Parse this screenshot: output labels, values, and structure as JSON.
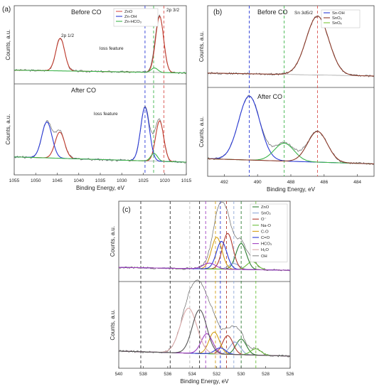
{
  "chart_data": [
    {
      "panel": "(a)",
      "type": "line",
      "xlabel": "Binding Energy, eV",
      "ylabel": "Counts, a.u.",
      "xlim": [
        1055,
        1015
      ],
      "x_ticks": [
        1055,
        1050,
        1045,
        1040,
        1035,
        1030,
        1025,
        1020,
        1015
      ],
      "legend": [
        "ZnO",
        "Zn-OH",
        "Zn-HCO3"
      ],
      "legend_display": [
        "ZnO",
        "Zn-OH",
        "Zn-HCO₃"
      ],
      "legend_colors": [
        "#d9534f",
        "#2b3bd6",
        "#3cb44b"
      ],
      "top": {
        "label": "Before CO",
        "annotations": [
          "2p 1/2",
          "2p 3/2",
          "loss feature"
        ],
        "series": [
          {
            "name": "ZnO",
            "color": "#c0392b",
            "peaks": [
              {
                "center": 1044.3,
                "height": 0.58,
                "fwhm": 2.4
              },
              {
                "center": 1021.2,
                "height": 1.0,
                "fwhm": 2.2
              }
            ]
          },
          {
            "name": "Zn-HCO3",
            "color": "#3cb44b",
            "peaks": [
              {
                "center": 1022.4,
                "height": 0.08,
                "fwhm": 1.8
              }
            ]
          }
        ]
      },
      "bottom": {
        "label": "After CO",
        "annotations": [
          "loss feature"
        ],
        "series": [
          {
            "name": "ZnO",
            "color": "#c0392b",
            "peaks": [
              {
                "center": 1044.4,
                "height": 0.4,
                "fwhm": 2.6
              },
              {
                "center": 1021.2,
                "height": 0.62,
                "fwhm": 2.2
              }
            ]
          },
          {
            "name": "Zn-OH",
            "color": "#2b3bd6",
            "peaks": [
              {
                "center": 1047.4,
                "height": 0.55,
                "fwhm": 2.8
              },
              {
                "center": 1024.6,
                "height": 0.82,
                "fwhm": 2.4
              }
            ]
          },
          {
            "name": "Zn-HCO3",
            "color": "#3cb44b",
            "peaks": [
              {
                "center": 1022.5,
                "height": 0.12,
                "fwhm": 1.8
              }
            ]
          }
        ]
      },
      "reference_lines": [
        {
          "x": 1024.6,
          "color": "#2b3bd6"
        },
        {
          "x": 1022.6,
          "color": "#3cb44b"
        },
        {
          "x": 1020.2,
          "color": "#d9534f"
        }
      ]
    },
    {
      "panel": "(b)",
      "type": "line",
      "xlabel": "Binding Energy, eV",
      "ylabel": "Counts, a.u.",
      "xlim": [
        493,
        483
      ],
      "x_ticks": [
        492,
        490,
        488,
        486,
        484
      ],
      "legend": [
        "Sn-OH",
        "SnO2",
        "SnOx"
      ],
      "legend_display": [
        "Sn-OH",
        "SnO₂",
        "SnOₓ"
      ],
      "legend_colors": [
        "#2b3bd6",
        "#8b3a2a",
        "#7cc63a"
      ],
      "top": {
        "label": "Before CO",
        "annotations": [
          "Sn 3d5/2"
        ],
        "series": [
          {
            "name": "SnO2",
            "color": "#8b3a2a",
            "peaks": [
              {
                "center": 486.4,
                "height": 1.0,
                "fwhm": 1.6
              }
            ]
          }
        ]
      },
      "bottom": {
        "label": "After CO",
        "series": [
          {
            "name": "Sn-OH",
            "color": "#2b3bd6",
            "peaks": [
              {
                "center": 490.5,
                "height": 1.0,
                "fwhm": 1.5
              }
            ]
          },
          {
            "name": "SnOx",
            "color": "#3cb44b",
            "peaks": [
              {
                "center": 488.4,
                "height": 0.28,
                "fwhm": 1.4
              }
            ]
          },
          {
            "name": "SnO2",
            "color": "#8b3a2a",
            "peaks": [
              {
                "center": 486.4,
                "height": 0.48,
                "fwhm": 1.4
              }
            ]
          }
        ]
      },
      "reference_lines": [
        {
          "x": 490.5,
          "color": "#2b3bd6"
        },
        {
          "x": 488.4,
          "color": "#3cb44b"
        },
        {
          "x": 486.4,
          "color": "#d9534f"
        }
      ]
    },
    {
      "panel": "(c)",
      "type": "line",
      "xlabel": "Binding Energy, eV",
      "ylabel": "Counts, a.u.",
      "xlim": [
        540,
        526
      ],
      "x_ticks": [
        540,
        538,
        536,
        534,
        532,
        530,
        528,
        526
      ],
      "legend": [
        "ZnO",
        "SnO2",
        "O-",
        "Na-O",
        "C-O",
        "C=O",
        "HCO3",
        "H2O",
        "OH"
      ],
      "legend_display": [
        "ZnO",
        "SnO₂",
        "O⁻",
        "Na-O",
        "C-O",
        "C=O",
        "HCO₃",
        "H₂O",
        "OH"
      ],
      "legend_colors": [
        "#2e7d32",
        "#8fa8d8",
        "#b03a2e",
        "#6bbf3a",
        "#d4a017",
        "#2b3bd6",
        "#a040c0",
        "#d9a8a8",
        "#8a8a8a"
      ],
      "top": {
        "series": [
          {
            "name": "ZnO",
            "color": "#2e7d32",
            "peaks": [
              {
                "center": 530.0,
                "height": 0.45,
                "fwhm": 1.0
              }
            ]
          },
          {
            "name": "SnO2",
            "color": "#8fa8d8",
            "peaks": [
              {
                "center": 530.6,
                "height": 0.1,
                "fwhm": 1.0
              }
            ]
          },
          {
            "name": "O-",
            "color": "#b03a2e",
            "peaks": [
              {
                "center": 531.1,
                "height": 0.62,
                "fwhm": 1.0
              }
            ]
          },
          {
            "name": "Na-O",
            "color": "#6bbf3a",
            "peaks": [
              {
                "center": 529.1,
                "height": 0.14,
                "fwhm": 1.0
              }
            ]
          },
          {
            "name": "C-O",
            "color": "#d4a017",
            "peaks": [
              {
                "center": 532.0,
                "height": 0.55,
                "fwhm": 1.0
              }
            ]
          },
          {
            "name": "C=O",
            "color": "#2b3bd6",
            "peaks": [
              {
                "center": 531.6,
                "height": 0.48,
                "fwhm": 1.0
              }
            ]
          },
          {
            "name": "HCO3",
            "color": "#a040c0",
            "peaks": [
              {
                "center": 532.6,
                "height": 0.1,
                "fwhm": 1.2
              }
            ]
          }
        ]
      },
      "bottom": {
        "series": [
          {
            "name": "ZnO",
            "color": "#2e7d32",
            "peaks": [
              {
                "center": 530.0,
                "height": 0.25,
                "fwhm": 1.0
              }
            ]
          },
          {
            "name": "SnO2",
            "color": "#8fa8d8",
            "peaks": [
              {
                "center": 530.5,
                "height": 0.2,
                "fwhm": 1.0
              }
            ]
          },
          {
            "name": "O-",
            "color": "#b03a2e",
            "peaks": [
              {
                "center": 531.1,
                "height": 0.3,
                "fwhm": 1.0
              }
            ]
          },
          {
            "name": "Na-O",
            "color": "#6bbf3a",
            "peaks": [
              {
                "center": 528.8,
                "height": 0.1,
                "fwhm": 1.0
              }
            ]
          },
          {
            "name": "C-O",
            "color": "#d4a017",
            "peaks": [
              {
                "center": 532.2,
                "height": 0.35,
                "fwhm": 1.0
              }
            ]
          },
          {
            "name": "C=O",
            "color": "#2b3bd6",
            "peaks": [
              {
                "center": 531.7,
                "height": 0.1,
                "fwhm": 1.0
              }
            ]
          },
          {
            "name": "HCO3",
            "color": "#a040c0",
            "peaks": [
              {
                "center": 532.8,
                "height": 0.32,
                "fwhm": 1.1
              }
            ]
          },
          {
            "name": "H2O",
            "color": "#d9a8a8",
            "peaks": [
              {
                "center": 534.3,
                "height": 0.72,
                "fwhm": 1.6
              }
            ]
          },
          {
            "name": "OH",
            "color": "#555555",
            "peaks": [
              {
                "center": 533.4,
                "height": 0.7,
                "fwhm": 1.4
              }
            ]
          }
        ]
      },
      "reference_lines": [
        {
          "x": 538.2,
          "color": "#333333"
        },
        {
          "x": 535.8,
          "color": "#333333"
        },
        {
          "x": 534.2,
          "color": "#bbbbbb"
        },
        {
          "x": 533.4,
          "color": "#333333"
        },
        {
          "x": 532.9,
          "color": "#a040c0"
        },
        {
          "x": 532.1,
          "color": "#d4a017"
        },
        {
          "x": 531.7,
          "color": "#2b3bd6"
        },
        {
          "x": 531.2,
          "color": "#b03a2e"
        },
        {
          "x": 530.6,
          "color": "#8fa8d8"
        },
        {
          "x": 530.0,
          "color": "#2e7d32"
        },
        {
          "x": 528.8,
          "color": "#6bbf3a"
        }
      ]
    }
  ]
}
